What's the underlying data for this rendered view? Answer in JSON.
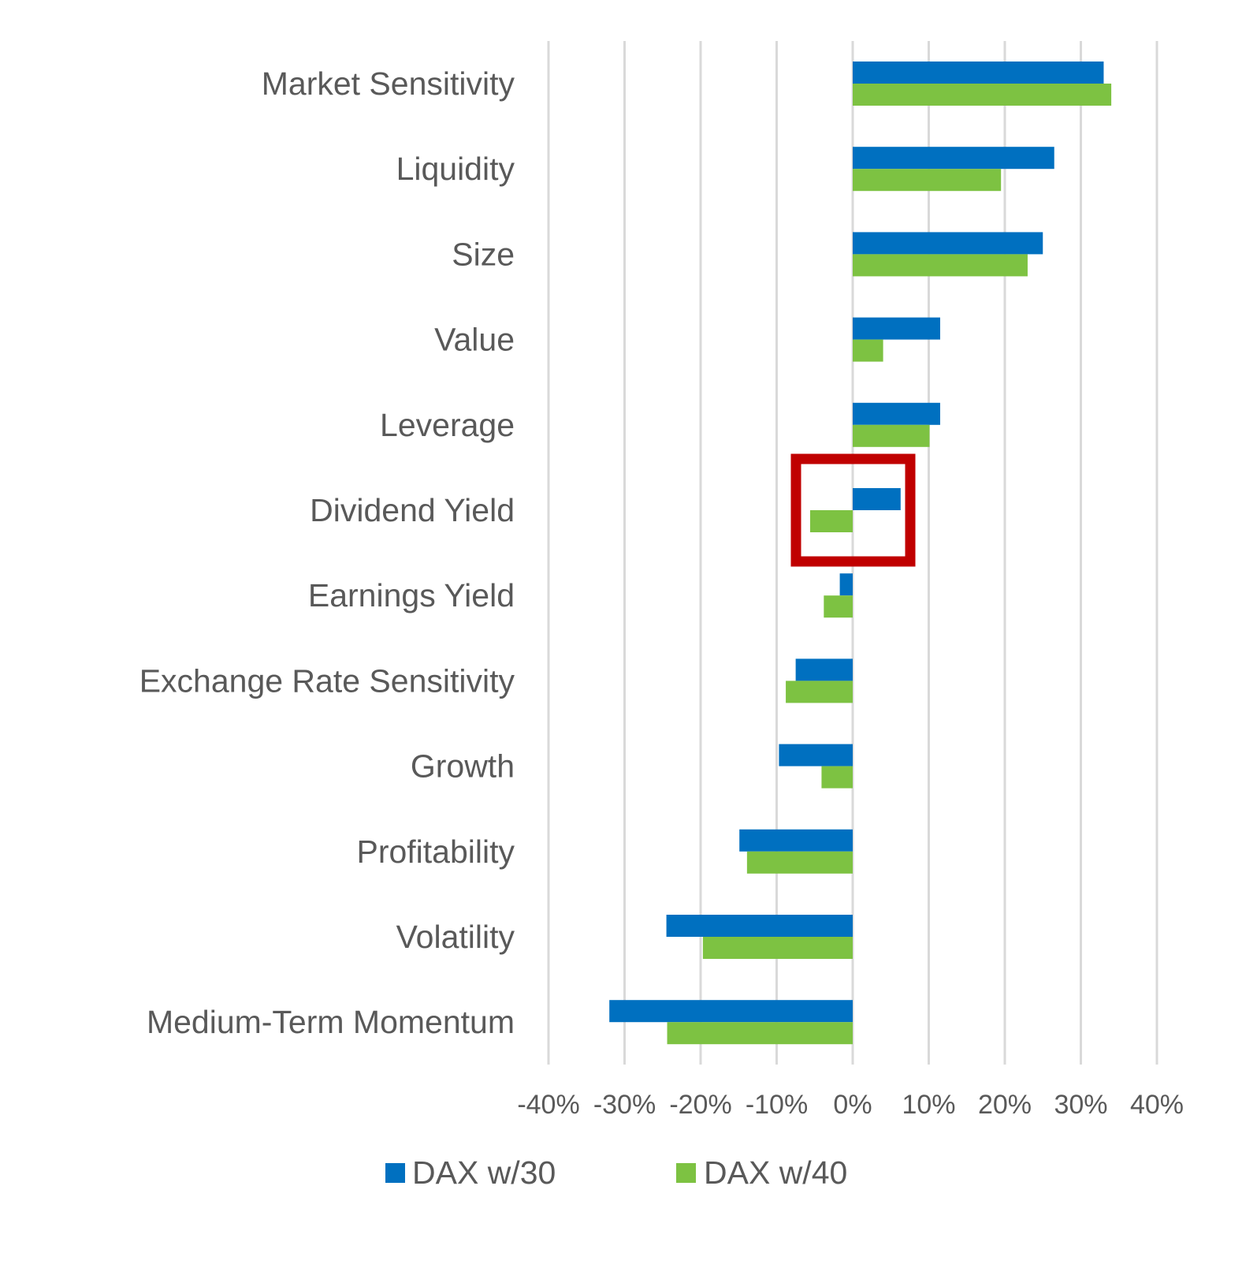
{
  "chart_data": {
    "type": "bar",
    "orientation": "horizontal",
    "categories": [
      "Market Sensitivity",
      "Liquidity",
      "Size",
      "Value",
      "Leverage",
      "Dividend Yield",
      "Earnings Yield",
      "Exchange Rate Sensitivity",
      "Growth",
      "Profitability",
      "Volatility",
      "Medium-Term Momentum"
    ],
    "series": [
      {
        "name": "DAX w/30",
        "color": "#0070C0",
        "values": [
          33,
          26.5,
          25,
          11.5,
          11.5,
          6.3,
          -1.7,
          -7.5,
          -9.7,
          -14.9,
          -24.5,
          -32
        ]
      },
      {
        "name": "DAX w/40",
        "color": "#7DC242",
        "values": [
          34,
          19.5,
          23,
          4,
          10.1,
          -5.6,
          -3.8,
          -8.8,
          -4.1,
          -13.9,
          -19.7,
          -24.4
        ]
      }
    ],
    "xlim": [
      -40,
      40
    ],
    "xticks": [
      "-40%",
      "-30%",
      "-20%",
      "-10%",
      "0%",
      "10%",
      "20%",
      "30%",
      "40%"
    ],
    "grid": true,
    "legend": "bottom",
    "highlight": {
      "category": "Dividend Yield",
      "color": "#C00000",
      "shape": "rectangle outline"
    }
  }
}
